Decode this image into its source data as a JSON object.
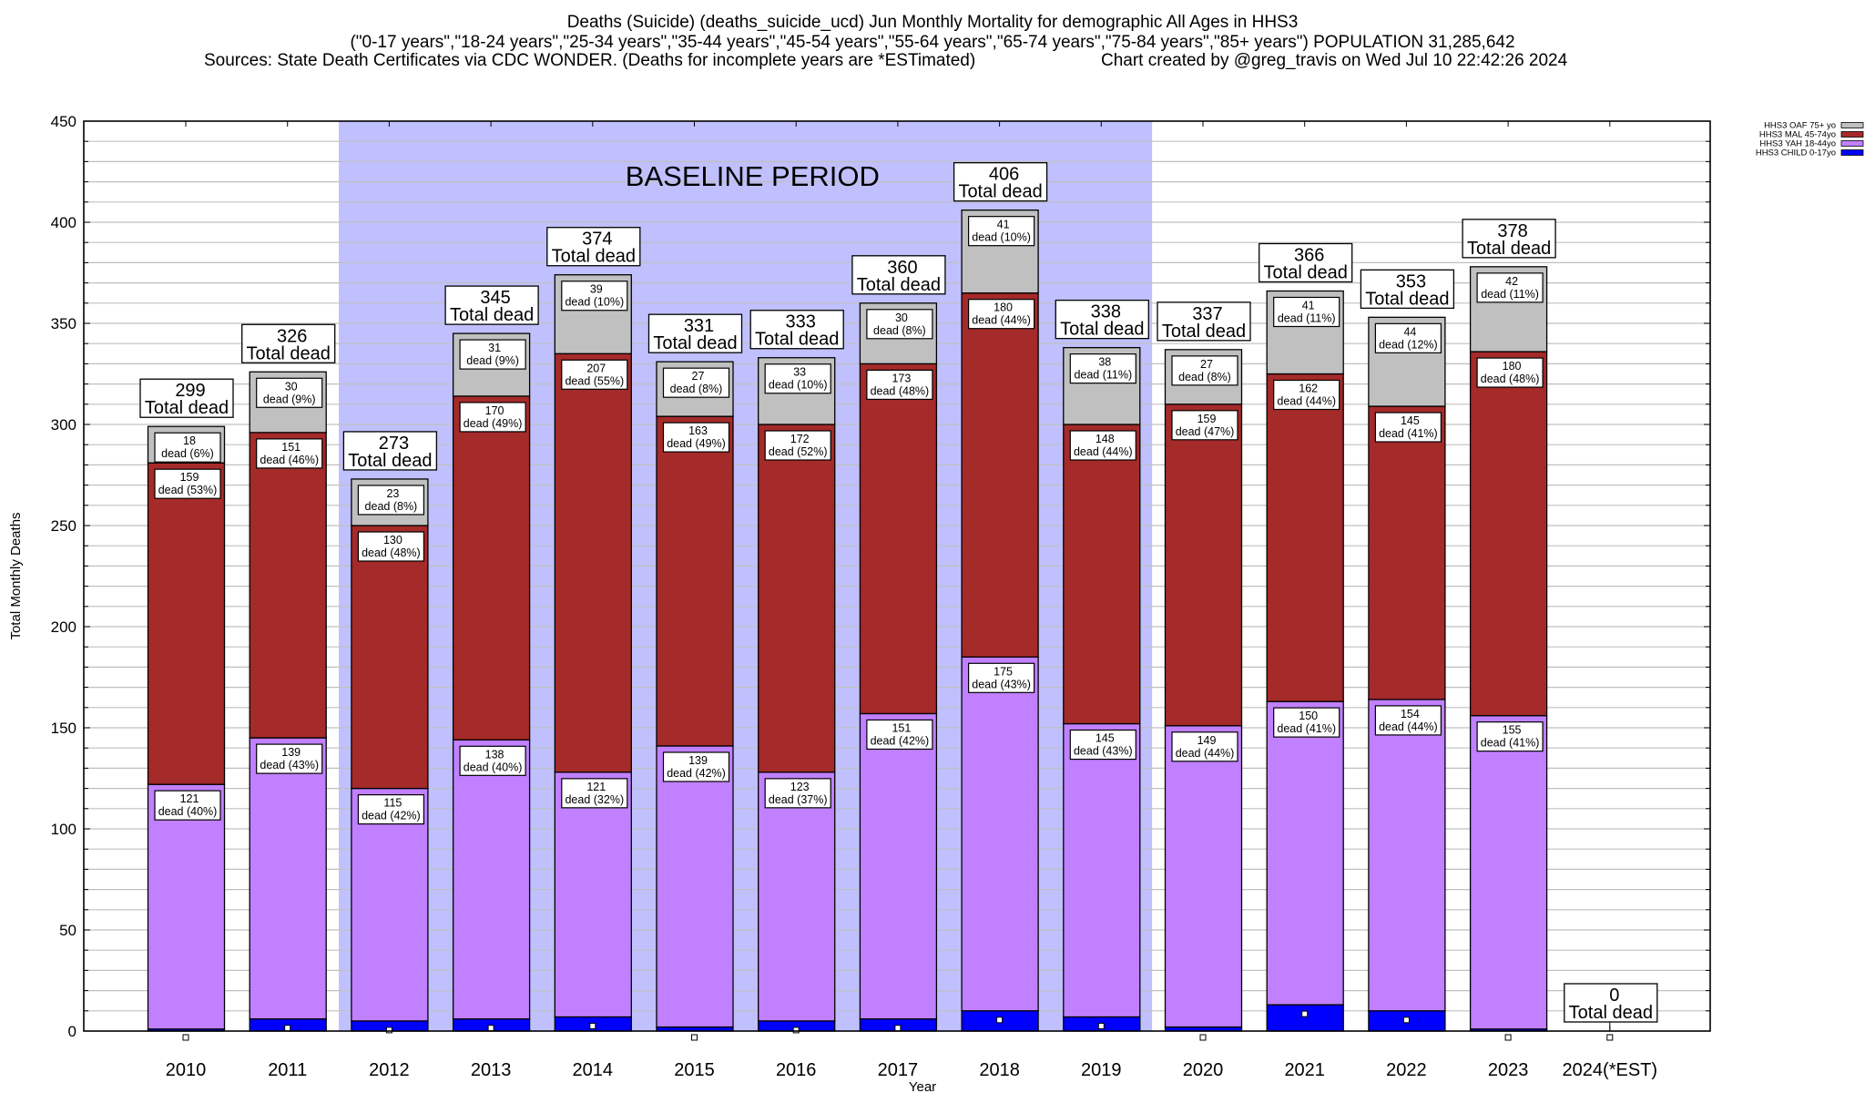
{
  "titles": {
    "line1": "Deaths (Suicide) (deaths_suicide_ucd) Jun Monthly Mortality for demographic All Ages in HHS3",
    "line2": "(\"0-17 years\",\"18-24 years\",\"25-34 years\",\"35-44 years\",\"45-54 years\",\"55-64 years\",\"65-74 years\",\"75-84 years\",\"85+ years\") POPULATION 31,285,642",
    "line3a": "Sources: State Death Certificates via CDC WONDER. (Deaths for incomplete years are *ESTimated)",
    "line3b": "Chart created by @greg_travis on Wed Jul 10 22:42:26 2024"
  },
  "chart_data": {
    "type": "bar",
    "stacked": true,
    "xlabel": "Year",
    "ylabel": "Total Monthly Deaths",
    "ylim": [
      0,
      450
    ],
    "yticks": [
      0,
      50,
      100,
      150,
      200,
      250,
      300,
      350,
      400,
      450
    ],
    "grid": true,
    "legend_position": "top-right",
    "annotation": "BASELINE PERIOD",
    "baseline_period": [
      "2012",
      "2019"
    ],
    "total_label_suffix": "Total dead",
    "segment_label_prefix": "dead",
    "categories": [
      "2010",
      "2011",
      "2012",
      "2013",
      "2014",
      "2015",
      "2016",
      "2017",
      "2018",
      "2019",
      "2020",
      "2021",
      "2022",
      "2023",
      "2024(*EST)"
    ],
    "totals": [
      299,
      326,
      273,
      345,
      374,
      331,
      333,
      360,
      406,
      338,
      337,
      366,
      353,
      378,
      0
    ],
    "series": [
      {
        "name": "HHS3 CHILD 0-17yo",
        "color": "#0000ff",
        "values": [
          1,
          6,
          5,
          6,
          7,
          2,
          5,
          6,
          10,
          7,
          2,
          13,
          10,
          1,
          0
        ],
        "pct": [],
        "labeled": false
      },
      {
        "name": "HHS3 YAH 18-44yo",
        "color": "#c080ff",
        "values": [
          121,
          139,
          115,
          138,
          121,
          139,
          123,
          151,
          175,
          145,
          149,
          150,
          154,
          155,
          0
        ],
        "pct": [
          "40%",
          "43%",
          "42%",
          "40%",
          "32%",
          "42%",
          "37%",
          "42%",
          "43%",
          "43%",
          "44%",
          "41%",
          "44%",
          "41%"
        ],
        "labeled": true
      },
      {
        "name": "HHS3 MAL 45-74yo",
        "color": "#a52a2a",
        "values": [
          159,
          151,
          130,
          170,
          207,
          163,
          172,
          173,
          180,
          148,
          159,
          162,
          145,
          180,
          0
        ],
        "pct": [
          "53%",
          "46%",
          "48%",
          "49%",
          "55%",
          "49%",
          "52%",
          "48%",
          "44%",
          "44%",
          "47%",
          "44%",
          "41%",
          "48%"
        ],
        "labeled": true
      },
      {
        "name": "HHS3 OAF 75+ yo",
        "color": "#c0c0c0",
        "values": [
          18,
          30,
          23,
          31,
          39,
          27,
          33,
          30,
          41,
          38,
          27,
          41,
          44,
          42,
          0
        ],
        "pct": [
          "6%",
          "9%",
          "8%",
          "9%",
          "10%",
          "8%",
          "10%",
          "8%",
          "10%",
          "11%",
          "8%",
          "11%",
          "12%",
          "11%"
        ],
        "labeled": true
      }
    ],
    "legend_order": [
      "HHS3 OAF 75+ yo",
      "HHS3 MAL 45-74yo",
      "HHS3 YAH 18-44yo",
      "HHS3 CHILD 0-17yo"
    ],
    "colors": {
      "baseline_shade": "#c0c0ff",
      "grid": "#c0c0c0"
    }
  }
}
